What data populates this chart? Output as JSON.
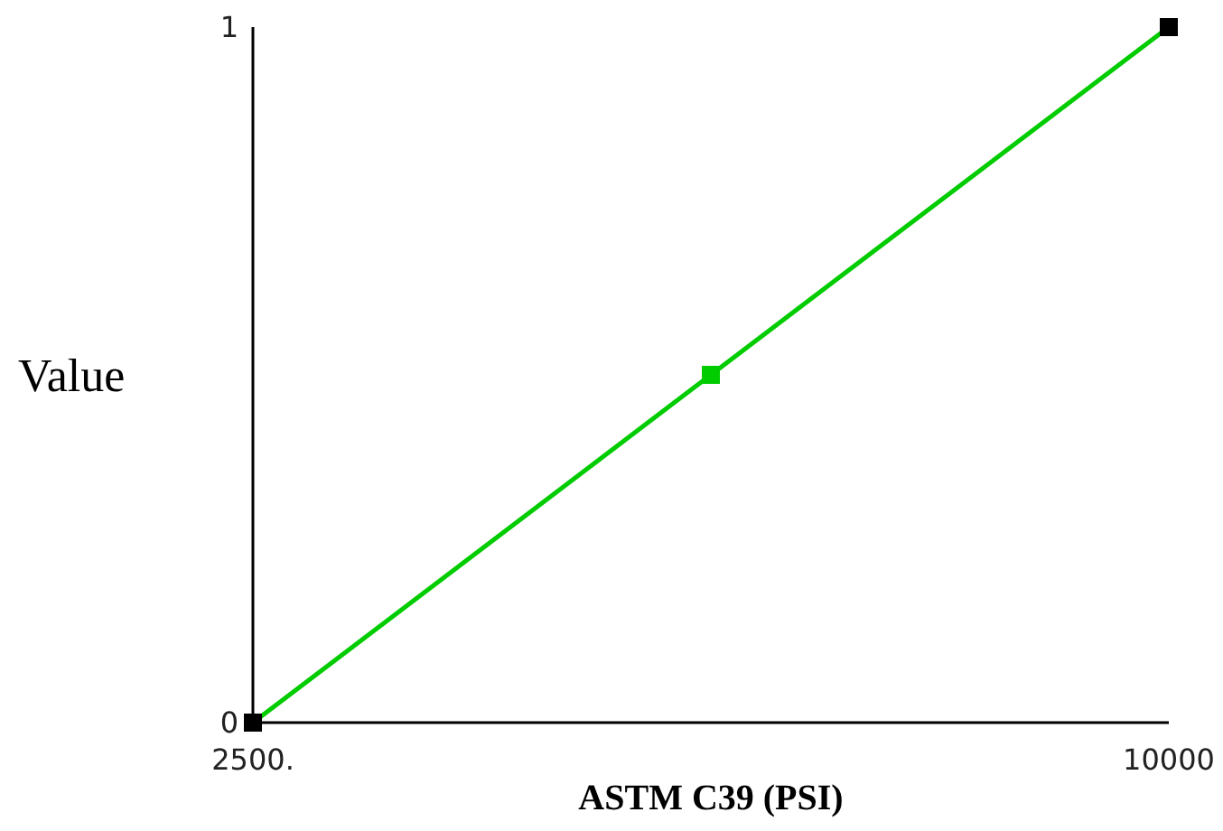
{
  "chart_data": {
    "type": "line",
    "xlabel": "ASTM C39 (PSI)",
    "ylabel": "Value",
    "x": [
      2500,
      6250,
      10000
    ],
    "xlim": [
      2500,
      10000
    ],
    "xticks": [
      {
        "value": 2500,
        "label": "2500."
      },
      10000
    ],
    "ylim": [
      0,
      1
    ],
    "yticks": [
      0,
      1
    ],
    "marker": "square",
    "series": [
      {
        "color": "#00cc00",
        "values": [
          0,
          0.5,
          1
        ],
        "colors": [
          "#000000",
          "#00cc00",
          "#000000"
        ]
      }
    ]
  }
}
